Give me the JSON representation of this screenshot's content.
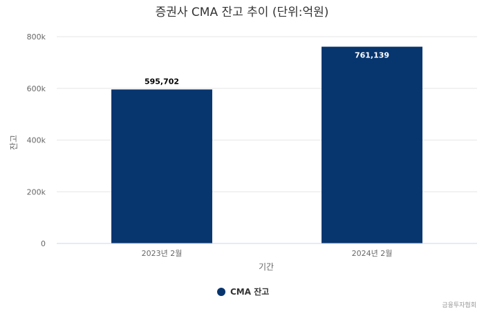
{
  "chart_data": {
    "type": "bar",
    "title": "증권사 CMA 잔고 추이 (단위:억원)",
    "xlabel": "기간",
    "ylabel": "잔고",
    "categories": [
      "2023년 2월",
      "2024년 2월"
    ],
    "series": [
      {
        "name": "CMA 잔고",
        "values": [
          595702,
          761139
        ],
        "color": "#07356e"
      }
    ],
    "data_labels": [
      "595,702",
      "761,139"
    ],
    "ylim": [
      0,
      800000
    ],
    "yticks": [
      0,
      200000,
      400000,
      600000,
      800000
    ],
    "ytick_labels": [
      "0",
      "200k",
      "400k",
      "600k",
      "800k"
    ],
    "grid": true,
    "legend_position": "bottom-center",
    "credit": "금융투자협회"
  },
  "colors": {
    "bar": "#07356e",
    "grid": "#e6e6e6",
    "axis_line": "#ccd6eb",
    "text": "#333333",
    "muted": "#666666"
  }
}
